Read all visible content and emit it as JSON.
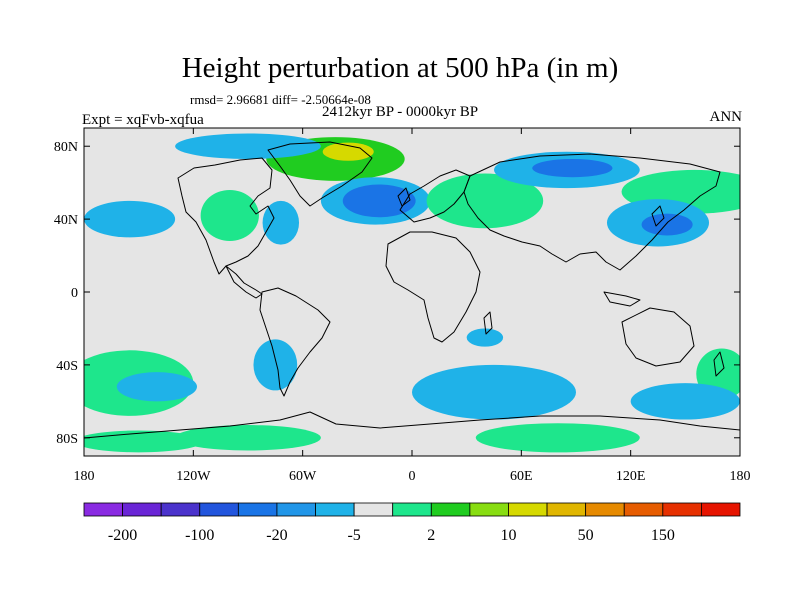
{
  "header": {
    "title": "Height perturbation at 500 hPa (in m)",
    "stats": "rmsd= 2.96681 diff= -2.50664e-08",
    "experiment": "Expt = xqFvb-xqfua",
    "period": "2412kyr BP - 0000kyr BP",
    "season": "ANN"
  },
  "map": {
    "projection": "cylindrical-equidistant",
    "lon_range": [
      -180,
      180
    ],
    "lat_range": [
      -90,
      90
    ],
    "lat_ticks": [
      {
        "value": 80,
        "label": "80N"
      },
      {
        "value": 40,
        "label": "40N"
      },
      {
        "value": 0,
        "label": "0"
      },
      {
        "value": -40,
        "label": "40S"
      },
      {
        "value": -80,
        "label": "80S"
      }
    ],
    "lon_ticks": [
      {
        "value": -180,
        "label": "180"
      },
      {
        "value": -120,
        "label": "120W"
      },
      {
        "value": -60,
        "label": "60W"
      },
      {
        "value": 0,
        "label": "0"
      },
      {
        "value": 60,
        "label": "60E"
      },
      {
        "value": 120,
        "label": "120E"
      },
      {
        "value": 180,
        "label": "180"
      }
    ],
    "features": [
      {
        "name": "anomaly-greenland-positive",
        "lon": -42,
        "lat": 73,
        "rlon": 38,
        "rlat": 12,
        "level": 10
      },
      {
        "name": "anomaly-greenland-core",
        "lon": -35,
        "lat": 77,
        "rlon": 14,
        "rlat": 5,
        "level": 50
      },
      {
        "name": "anomaly-arctic-ring-negative",
        "lon": -90,
        "lat": 80,
        "rlon": 40,
        "rlat": 7,
        "level": -5
      },
      {
        "name": "anomaly-north-atlantic-negative",
        "lon": -20,
        "lat": 50,
        "rlon": 30,
        "rlat": 13,
        "level": -5
      },
      {
        "name": "anomaly-north-atlantic-core",
        "lon": -18,
        "lat": 50,
        "rlon": 20,
        "rlat": 9,
        "level": -20
      },
      {
        "name": "anomaly-eurasia-positive",
        "lon": 40,
        "lat": 50,
        "rlon": 32,
        "rlat": 15,
        "level": 2
      },
      {
        "name": "anomaly-siberia-negative",
        "lon": 85,
        "lat": 67,
        "rlon": 40,
        "rlat": 10,
        "level": -5
      },
      {
        "name": "anomaly-siberia-core",
        "lon": 88,
        "lat": 68,
        "rlon": 22,
        "rlat": 5,
        "level": -20
      },
      {
        "name": "anomaly-north-pacific-positive",
        "lon": 155,
        "lat": 55,
        "rlon": 40,
        "rlat": 12,
        "level": 2
      },
      {
        "name": "anomaly-west-pacific-negative",
        "lon": 135,
        "lat": 38,
        "rlon": 28,
        "rlat": 13,
        "level": -5
      },
      {
        "name": "anomaly-west-pacific-core",
        "lon": 140,
        "lat": 37,
        "rlon": 14,
        "rlat": 6,
        "level": -20
      },
      {
        "name": "anomaly-east-pacific-negative",
        "lon": -155,
        "lat": 40,
        "rlon": 25,
        "rlat": 10,
        "level": -5
      },
      {
        "name": "anomaly-north-america-positive",
        "lon": -100,
        "lat": 42,
        "rlon": 16,
        "rlat": 14,
        "level": 2
      },
      {
        "name": "anomaly-atlantic-seaboard-negative",
        "lon": -72,
        "lat": 38,
        "rlon": 10,
        "rlat": 12,
        "level": -5
      },
      {
        "name": "anomaly-south-pacific-positive",
        "lon": -155,
        "lat": -50,
        "rlon": 35,
        "rlat": 18,
        "level": 2
      },
      {
        "name": "anomaly-south-pacific-negative",
        "lon": -140,
        "lat": -52,
        "rlon": 22,
        "rlat": 8,
        "level": -5
      },
      {
        "name": "anomaly-south-america-negative",
        "lon": -75,
        "lat": -40,
        "rlon": 12,
        "rlat": 14,
        "level": -5
      },
      {
        "name": "anomaly-south-atlantic-negative",
        "lon": 45,
        "lat": -55,
        "rlon": 45,
        "rlat": 15,
        "level": -5
      },
      {
        "name": "anomaly-indian-ocean-negative",
        "lon": 40,
        "lat": -25,
        "rlon": 10,
        "rlat": 5,
        "level": -5
      },
      {
        "name": "anomaly-southern-ocean-positive",
        "lon": 80,
        "lat": -80,
        "rlon": 45,
        "rlat": 8,
        "level": 2
      },
      {
        "name": "anomaly-antarctic-west-positive",
        "lon": -150,
        "lat": -82,
        "rlon": 35,
        "rlat": 6,
        "level": 2
      },
      {
        "name": "anomaly-antarctic-ross-positive",
        "lon": -90,
        "lat": -80,
        "rlon": 40,
        "rlat": 7,
        "level": 2
      },
      {
        "name": "anomaly-far-east-south-positive",
        "lon": 170,
        "lat": -45,
        "rlon": 14,
        "rlat": 14,
        "level": 2
      },
      {
        "name": "anomaly-indian-ocean-east-negative",
        "lon": 150,
        "lat": -60,
        "rlon": 30,
        "rlat": 10,
        "level": -5
      }
    ]
  },
  "colorbar": {
    "colors": [
      "#8a2be2",
      "#6a25d6",
      "#4b33cc",
      "#2255dd",
      "#1a74e6",
      "#2196e8",
      "#1fb2e8",
      "#e5e5e5",
      "#1ee68c",
      "#20cc20",
      "#88dd11",
      "#d6d900",
      "#e0b600",
      "#e68a00",
      "#e65c00",
      "#e63000",
      "#e61400"
    ],
    "labels": [
      "-200",
      "-100",
      "-20",
      "-5",
      "2",
      "10",
      "50",
      "150"
    ]
  }
}
